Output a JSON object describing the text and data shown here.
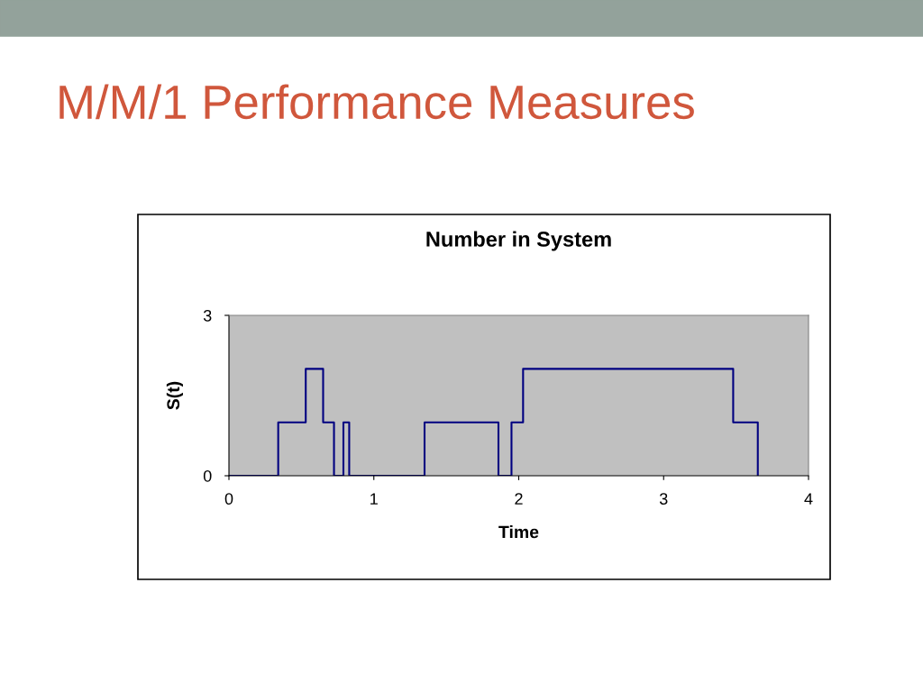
{
  "chart_data": {
    "type": "step",
    "title": "M/M/1 Performance Measures",
    "subtitle": "Number in System",
    "xlabel": "Time",
    "ylabel": "S(t)",
    "x": [
      0,
      0.34,
      0.53,
      0.65,
      0.725,
      0.79,
      0.83,
      1.35,
      1.86,
      1.95,
      2.03,
      3.48,
      3.65
    ],
    "series": [
      {
        "color": "#000080",
        "values": [
          0,
          1,
          2,
          1,
          0,
          1,
          0,
          1,
          0,
          1,
          2,
          1,
          0
        ]
      }
    ],
    "xlim": [
      0,
      4
    ],
    "xticks": [
      0,
      1,
      2,
      3,
      4
    ],
    "ylim": [
      0,
      3
    ],
    "yticks": [
      0,
      3
    ],
    "grid": false,
    "legend": false,
    "marker": "none",
    "line_style": "solid"
  }
}
